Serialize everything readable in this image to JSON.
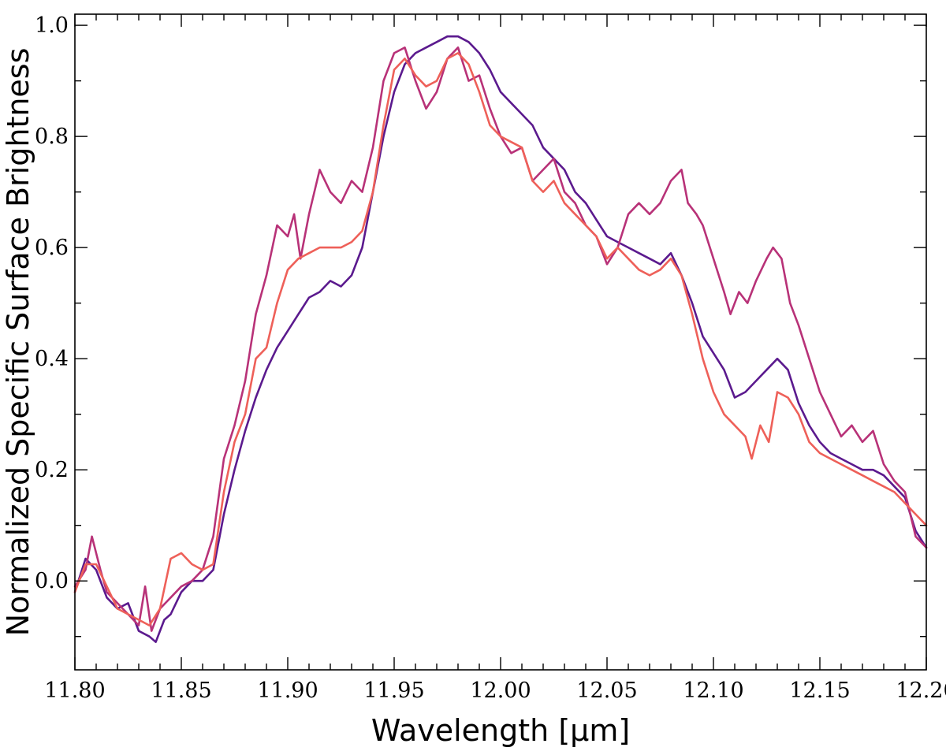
{
  "chart_data": {
    "type": "line",
    "title": "",
    "xlabel": "Wavelength [μm]",
    "ylabel": "Normalized Specific Surface Brightness",
    "xlim": [
      11.8,
      12.2
    ],
    "ylim": [
      -0.16,
      1.02
    ],
    "x_ticks": [
      11.8,
      11.85,
      11.9,
      11.95,
      12.0,
      12.05,
      12.1,
      12.15,
      12.2
    ],
    "x_tick_labels": [
      "11.80",
      "11.85",
      "11.90",
      "11.95",
      "12.00",
      "12.05",
      "12.10",
      "12.15",
      "12.20"
    ],
    "y_ticks": [
      0.0,
      0.2,
      0.4,
      0.6,
      0.8,
      1.0
    ],
    "y_tick_labels": [
      "0.0",
      "0.2",
      "0.4",
      "0.6",
      "0.8",
      "1.0"
    ],
    "grid": false,
    "legend": "none",
    "series": [
      {
        "color": "#5b1a8e",
        "points": [
          [
            11.8,
            -0.02
          ],
          [
            11.805,
            0.04
          ],
          [
            11.81,
            0.02
          ],
          [
            11.815,
            -0.03
          ],
          [
            11.82,
            -0.05
          ],
          [
            11.825,
            -0.04
          ],
          [
            11.83,
            -0.09
          ],
          [
            11.835,
            -0.1
          ],
          [
            11.838,
            -0.11
          ],
          [
            11.842,
            -0.07
          ],
          [
            11.845,
            -0.06
          ],
          [
            11.85,
            -0.02
          ],
          [
            11.855,
            0.0
          ],
          [
            11.86,
            0.0
          ],
          [
            11.865,
            0.02
          ],
          [
            11.87,
            0.12
          ],
          [
            11.875,
            0.2
          ],
          [
            11.88,
            0.27
          ],
          [
            11.885,
            0.33
          ],
          [
            11.89,
            0.38
          ],
          [
            11.895,
            0.42
          ],
          [
            11.9,
            0.45
          ],
          [
            11.905,
            0.48
          ],
          [
            11.91,
            0.51
          ],
          [
            11.915,
            0.52
          ],
          [
            11.92,
            0.54
          ],
          [
            11.925,
            0.53
          ],
          [
            11.93,
            0.55
          ],
          [
            11.935,
            0.6
          ],
          [
            11.94,
            0.7
          ],
          [
            11.945,
            0.8
          ],
          [
            11.95,
            0.88
          ],
          [
            11.955,
            0.93
          ],
          [
            11.96,
            0.95
          ],
          [
            11.965,
            0.96
          ],
          [
            11.97,
            0.97
          ],
          [
            11.975,
            0.98
          ],
          [
            11.98,
            0.98
          ],
          [
            11.985,
            0.97
          ],
          [
            11.99,
            0.95
          ],
          [
            11.995,
            0.92
          ],
          [
            12.0,
            0.88
          ],
          [
            12.005,
            0.86
          ],
          [
            12.01,
            0.84
          ],
          [
            12.015,
            0.82
          ],
          [
            12.02,
            0.78
          ],
          [
            12.025,
            0.76
          ],
          [
            12.03,
            0.74
          ],
          [
            12.035,
            0.7
          ],
          [
            12.04,
            0.68
          ],
          [
            12.045,
            0.65
          ],
          [
            12.05,
            0.62
          ],
          [
            12.055,
            0.61
          ],
          [
            12.06,
            0.6
          ],
          [
            12.065,
            0.59
          ],
          [
            12.07,
            0.58
          ],
          [
            12.075,
            0.57
          ],
          [
            12.08,
            0.59
          ],
          [
            12.085,
            0.55
          ],
          [
            12.09,
            0.5
          ],
          [
            12.095,
            0.44
          ],
          [
            12.1,
            0.41
          ],
          [
            12.105,
            0.38
          ],
          [
            12.11,
            0.33
          ],
          [
            12.115,
            0.34
          ],
          [
            12.12,
            0.36
          ],
          [
            12.125,
            0.38
          ],
          [
            12.13,
            0.4
          ],
          [
            12.135,
            0.38
          ],
          [
            12.14,
            0.32
          ],
          [
            12.145,
            0.28
          ],
          [
            12.15,
            0.25
          ],
          [
            12.155,
            0.23
          ],
          [
            12.16,
            0.22
          ],
          [
            12.165,
            0.21
          ],
          [
            12.17,
            0.2
          ],
          [
            12.175,
            0.2
          ],
          [
            12.18,
            0.19
          ],
          [
            12.185,
            0.17
          ],
          [
            12.19,
            0.15
          ],
          [
            12.195,
            0.09
          ],
          [
            12.2,
            0.06
          ]
        ]
      },
      {
        "color": "#b83278",
        "points": [
          [
            11.8,
            -0.01
          ],
          [
            11.805,
            0.02
          ],
          [
            11.808,
            0.08
          ],
          [
            11.812,
            0.02
          ],
          [
            11.815,
            -0.02
          ],
          [
            11.82,
            -0.04
          ],
          [
            11.825,
            -0.06
          ],
          [
            11.83,
            -0.08
          ],
          [
            11.833,
            -0.01
          ],
          [
            11.836,
            -0.09
          ],
          [
            11.84,
            -0.05
          ],
          [
            11.845,
            -0.03
          ],
          [
            11.85,
            -0.01
          ],
          [
            11.855,
            0.0
          ],
          [
            11.86,
            0.02
          ],
          [
            11.865,
            0.08
          ],
          [
            11.87,
            0.22
          ],
          [
            11.875,
            0.28
          ],
          [
            11.88,
            0.36
          ],
          [
            11.885,
            0.48
          ],
          [
            11.89,
            0.55
          ],
          [
            11.895,
            0.64
          ],
          [
            11.9,
            0.62
          ],
          [
            11.903,
            0.66
          ],
          [
            11.906,
            0.58
          ],
          [
            11.91,
            0.66
          ],
          [
            11.915,
            0.74
          ],
          [
            11.92,
            0.7
          ],
          [
            11.925,
            0.68
          ],
          [
            11.93,
            0.72
          ],
          [
            11.935,
            0.7
          ],
          [
            11.94,
            0.78
          ],
          [
            11.945,
            0.9
          ],
          [
            11.95,
            0.95
          ],
          [
            11.955,
            0.96
          ],
          [
            11.96,
            0.9
          ],
          [
            11.965,
            0.85
          ],
          [
            11.97,
            0.88
          ],
          [
            11.975,
            0.94
          ],
          [
            11.98,
            0.96
          ],
          [
            11.985,
            0.9
          ],
          [
            11.99,
            0.91
          ],
          [
            11.995,
            0.85
          ],
          [
            12.0,
            0.8
          ],
          [
            12.005,
            0.77
          ],
          [
            12.01,
            0.78
          ],
          [
            12.015,
            0.72
          ],
          [
            12.02,
            0.74
          ],
          [
            12.025,
            0.76
          ],
          [
            12.03,
            0.7
          ],
          [
            12.035,
            0.68
          ],
          [
            12.04,
            0.64
          ],
          [
            12.045,
            0.62
          ],
          [
            12.05,
            0.57
          ],
          [
            12.055,
            0.6
          ],
          [
            12.06,
            0.66
          ],
          [
            12.065,
            0.68
          ],
          [
            12.07,
            0.66
          ],
          [
            12.075,
            0.68
          ],
          [
            12.08,
            0.72
          ],
          [
            12.085,
            0.74
          ],
          [
            12.088,
            0.68
          ],
          [
            12.092,
            0.66
          ],
          [
            12.095,
            0.64
          ],
          [
            12.1,
            0.58
          ],
          [
            12.105,
            0.52
          ],
          [
            12.108,
            0.48
          ],
          [
            12.112,
            0.52
          ],
          [
            12.116,
            0.5
          ],
          [
            12.12,
            0.54
          ],
          [
            12.125,
            0.58
          ],
          [
            12.128,
            0.6
          ],
          [
            12.132,
            0.58
          ],
          [
            12.136,
            0.5
          ],
          [
            12.14,
            0.46
          ],
          [
            12.145,
            0.4
          ],
          [
            12.15,
            0.34
          ],
          [
            12.155,
            0.3
          ],
          [
            12.16,
            0.26
          ],
          [
            12.165,
            0.28
          ],
          [
            12.17,
            0.25
          ],
          [
            12.175,
            0.27
          ],
          [
            12.18,
            0.21
          ],
          [
            12.185,
            0.18
          ],
          [
            12.19,
            0.16
          ],
          [
            12.195,
            0.08
          ],
          [
            12.2,
            0.06
          ]
        ]
      },
      {
        "color": "#ee6059",
        "points": [
          [
            11.8,
            -0.02
          ],
          [
            11.805,
            0.03
          ],
          [
            11.81,
            0.03
          ],
          [
            11.815,
            -0.01
          ],
          [
            11.82,
            -0.05
          ],
          [
            11.825,
            -0.06
          ],
          [
            11.83,
            -0.07
          ],
          [
            11.835,
            -0.08
          ],
          [
            11.84,
            -0.05
          ],
          [
            11.845,
            0.04
          ],
          [
            11.85,
            0.05
          ],
          [
            11.855,
            0.03
          ],
          [
            11.86,
            0.02
          ],
          [
            11.865,
            0.03
          ],
          [
            11.87,
            0.16
          ],
          [
            11.875,
            0.25
          ],
          [
            11.88,
            0.3
          ],
          [
            11.885,
            0.4
          ],
          [
            11.89,
            0.42
          ],
          [
            11.895,
            0.5
          ],
          [
            11.9,
            0.56
          ],
          [
            11.905,
            0.58
          ],
          [
            11.91,
            0.59
          ],
          [
            11.915,
            0.6
          ],
          [
            11.92,
            0.6
          ],
          [
            11.925,
            0.6
          ],
          [
            11.93,
            0.61
          ],
          [
            11.935,
            0.63
          ],
          [
            11.94,
            0.7
          ],
          [
            11.945,
            0.82
          ],
          [
            11.95,
            0.92
          ],
          [
            11.955,
            0.94
          ],
          [
            11.96,
            0.91
          ],
          [
            11.965,
            0.89
          ],
          [
            11.97,
            0.9
          ],
          [
            11.975,
            0.94
          ],
          [
            11.98,
            0.95
          ],
          [
            11.985,
            0.93
          ],
          [
            11.99,
            0.88
          ],
          [
            11.995,
            0.82
          ],
          [
            12.0,
            0.8
          ],
          [
            12.005,
            0.79
          ],
          [
            12.01,
            0.78
          ],
          [
            12.015,
            0.72
          ],
          [
            12.02,
            0.7
          ],
          [
            12.025,
            0.72
          ],
          [
            12.03,
            0.68
          ],
          [
            12.035,
            0.66
          ],
          [
            12.04,
            0.64
          ],
          [
            12.045,
            0.62
          ],
          [
            12.05,
            0.58
          ],
          [
            12.055,
            0.6
          ],
          [
            12.06,
            0.58
          ],
          [
            12.065,
            0.56
          ],
          [
            12.07,
            0.55
          ],
          [
            12.075,
            0.56
          ],
          [
            12.08,
            0.58
          ],
          [
            12.085,
            0.55
          ],
          [
            12.09,
            0.48
          ],
          [
            12.095,
            0.4
          ],
          [
            12.1,
            0.34
          ],
          [
            12.105,
            0.3
          ],
          [
            12.11,
            0.28
          ],
          [
            12.115,
            0.26
          ],
          [
            12.118,
            0.22
          ],
          [
            12.122,
            0.28
          ],
          [
            12.126,
            0.25
          ],
          [
            12.13,
            0.34
          ],
          [
            12.135,
            0.33
          ],
          [
            12.14,
            0.3
          ],
          [
            12.145,
            0.25
          ],
          [
            12.15,
            0.23
          ],
          [
            12.155,
            0.22
          ],
          [
            12.16,
            0.21
          ],
          [
            12.165,
            0.2
          ],
          [
            12.17,
            0.19
          ],
          [
            12.175,
            0.18
          ],
          [
            12.18,
            0.17
          ],
          [
            12.185,
            0.16
          ],
          [
            12.19,
            0.14
          ],
          [
            12.195,
            0.12
          ],
          [
            12.2,
            0.1
          ]
        ]
      }
    ]
  }
}
